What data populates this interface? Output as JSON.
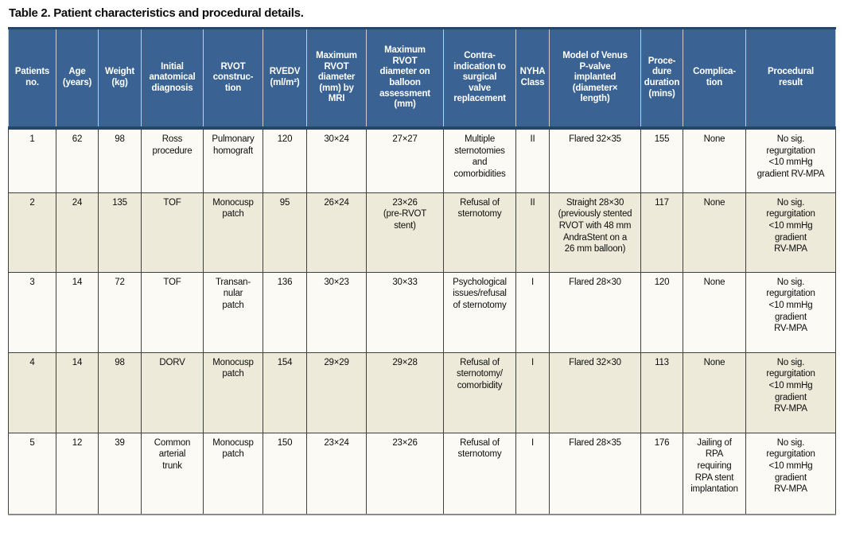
{
  "title": "Table 2. Patient characteristics and procedural details.",
  "colors": {
    "header_bg": "#3a6394",
    "header_border": "#24466b",
    "header_text": "#ffffff",
    "row_plain_bg": "#fbfaf5",
    "row_shaded_bg": "#edead9",
    "cell_border": "#3f3f3d"
  },
  "table": {
    "headers": [
      "Patients\nno.",
      "Age\n(years)",
      "Weight\n(kg)",
      "Initial\nanatomical\ndiagnosis",
      "RVOT\nconstruc-\ntion",
      "RVEDV\n(ml/m²)",
      "Maximum\nRVOT\ndiameter\n(mm) by\nMRI",
      "Maximum\nRVOT\ndiameter on\nballoon\nassessment\n(mm)",
      "Contra-\nindication to\nsurgical\nvalve\nreplacement",
      "NYHA\nClass",
      "Model of Venus\nP-valve\nimplanted\n(diameter×\nlength)",
      "Proce-\ndure\nduration\n(mins)",
      "Complica-\ntion",
      "Procedural\nresult"
    ],
    "rows": [
      [
        "1",
        "62",
        "98",
        "Ross\nprocedure",
        "Pulmonary\nhomograft",
        "120",
        "30×24",
        "27×27",
        "Multiple\nsternotomies\nand\ncomorbidities",
        "II",
        "Flared 32×35",
        "155",
        "None",
        "No sig.\nregurgitation\n<10 mmHg\ngradient RV-MPA"
      ],
      [
        "2",
        "24",
        "135",
        "TOF",
        "Monocusp\npatch",
        "95",
        "26×24",
        "23×26\n(pre-RVOT\nstent)",
        "Refusal of\nsternotomy",
        "II",
        "Straight 28×30\n(previously stented\nRVOT with 48 mm\nAndraStent on a\n26 mm balloon)",
        "117",
        "None",
        "No sig.\nregurgitation\n<10 mmHg\ngradient\nRV-MPA"
      ],
      [
        "3",
        "14",
        "72",
        "TOF",
        "Transan-\nnular\npatch",
        "136",
        "30×23",
        "30×33",
        "Psychological\nissues/refusal\nof sternotomy",
        "I",
        "Flared 28×30",
        "120",
        "None",
        "No sig.\nregurgitation\n<10 mmHg\ngradient\nRV-MPA"
      ],
      [
        "4",
        "14",
        "98",
        "DORV",
        "Monocusp\npatch",
        "154",
        "29×29",
        "29×28",
        "Refusal of\nsternotomy/\ncomorbidity",
        "I",
        "Flared 32×30",
        "113",
        "None",
        "No sig.\nregurgitation\n<10 mmHg\ngradient\nRV-MPA"
      ],
      [
        "5",
        "12",
        "39",
        "Common\narterial\ntrunk",
        "Monocusp\npatch",
        "150",
        "23×24",
        "23×26",
        "Refusal of\nsternotomy",
        "I",
        "Flared 28×35",
        "176",
        "Jailing of\nRPA\nrequiring\nRPA stent\nimplantation",
        "No sig.\nregurgitation\n<10 mmHg\ngradient\nRV-MPA"
      ]
    ]
  }
}
